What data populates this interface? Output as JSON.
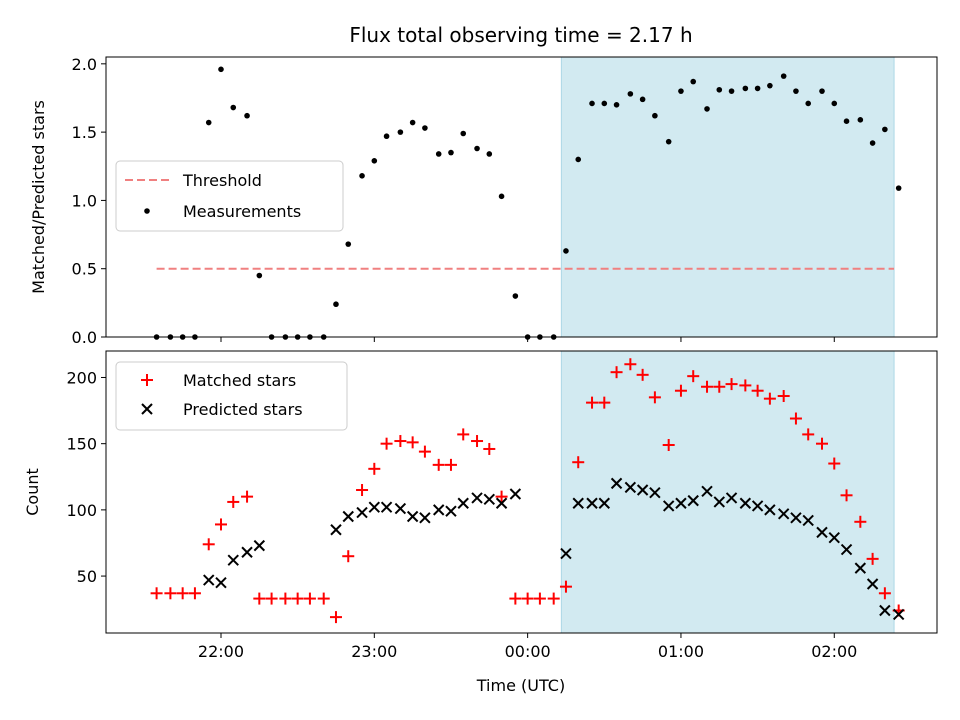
{
  "chart_data": {
    "title": "Flux total observing time = 2.17 h",
    "xlabel": "Time (UTC)",
    "x_ticks": [
      "22:00",
      "23:00",
      "00:00",
      "01:00",
      "02:00"
    ],
    "x_tick_hours": [
      22,
      23,
      24,
      25,
      26
    ],
    "xlim_hours": [
      21.25,
      26.67
    ],
    "shaded_span_hours": [
      24.22,
      26.39
    ],
    "shade_color": "#add8e6",
    "top": {
      "type": "scatter",
      "ylabel": "Matched/Predicted stars",
      "ylim": [
        0,
        2.05
      ],
      "yticks": [
        "0.0",
        "0.5",
        "1.0",
        "1.5",
        "2.0"
      ],
      "ytick_values": [
        0,
        0.5,
        1.0,
        1.5,
        2.0
      ],
      "threshold": 0.5,
      "threshold_range_hours": [
        21.58,
        26.39
      ],
      "threshold_color": "#f08080",
      "legend": {
        "threshold_label": "Threshold",
        "measurements_label": "Measurements",
        "loc": "center-left"
      },
      "points": [
        [
          21.58,
          0
        ],
        [
          21.67,
          0
        ],
        [
          21.75,
          0
        ],
        [
          21.83,
          0
        ],
        [
          21.92,
          1.57
        ],
        [
          22.0,
          1.96
        ],
        [
          22.08,
          1.68
        ],
        [
          22.17,
          1.62
        ],
        [
          22.25,
          0.45
        ],
        [
          22.33,
          0
        ],
        [
          22.42,
          0
        ],
        [
          22.5,
          0
        ],
        [
          22.58,
          0
        ],
        [
          22.67,
          0
        ],
        [
          22.75,
          0.24
        ],
        [
          22.83,
          0.68
        ],
        [
          22.92,
          1.18
        ],
        [
          23.0,
          1.29
        ],
        [
          23.08,
          1.47
        ],
        [
          23.17,
          1.5
        ],
        [
          23.25,
          1.57
        ],
        [
          23.33,
          1.53
        ],
        [
          23.42,
          1.34
        ],
        [
          23.5,
          1.35
        ],
        [
          23.58,
          1.49
        ],
        [
          23.67,
          1.38
        ],
        [
          23.75,
          1.34
        ],
        [
          23.83,
          1.03
        ],
        [
          23.92,
          0.3
        ],
        [
          24.0,
          0
        ],
        [
          24.08,
          0
        ],
        [
          24.17,
          0
        ],
        [
          24.25,
          0.63
        ],
        [
          24.33,
          1.3
        ],
        [
          24.42,
          1.71
        ],
        [
          24.5,
          1.71
        ],
        [
          24.58,
          1.7
        ],
        [
          24.67,
          1.78
        ],
        [
          24.75,
          1.74
        ],
        [
          24.83,
          1.62
        ],
        [
          24.92,
          1.43
        ],
        [
          25.0,
          1.8
        ],
        [
          25.08,
          1.87
        ],
        [
          25.17,
          1.67
        ],
        [
          25.25,
          1.81
        ],
        [
          25.33,
          1.8
        ],
        [
          25.42,
          1.82
        ],
        [
          25.5,
          1.82
        ],
        [
          25.58,
          1.84
        ],
        [
          25.67,
          1.91
        ],
        [
          25.75,
          1.8
        ],
        [
          25.83,
          1.71
        ],
        [
          25.92,
          1.8
        ],
        [
          26.0,
          1.71
        ],
        [
          26.08,
          1.58
        ],
        [
          26.17,
          1.59
        ],
        [
          26.25,
          1.42
        ],
        [
          26.33,
          1.52
        ],
        [
          26.42,
          1.09
        ]
      ]
    },
    "bottom": {
      "type": "scatter",
      "ylabel": "Count",
      "ylim": [
        7,
        220
      ],
      "yticks": [
        "50",
        "100",
        "150",
        "200"
      ],
      "ytick_values": [
        50,
        100,
        150,
        200
      ],
      "legend": {
        "matched_label": "Matched stars",
        "predicted_label": "Predicted stars",
        "loc": "top-left"
      },
      "matched_color": "#ff0000",
      "predicted_color": "#000000",
      "matched": [
        [
          21.58,
          37
        ],
        [
          21.67,
          37
        ],
        [
          21.75,
          37
        ],
        [
          21.83,
          37
        ],
        [
          21.92,
          74
        ],
        [
          22.0,
          89
        ],
        [
          22.08,
          106
        ],
        [
          22.17,
          110
        ],
        [
          22.25,
          33
        ],
        [
          22.33,
          33
        ],
        [
          22.42,
          33
        ],
        [
          22.5,
          33
        ],
        [
          22.58,
          33
        ],
        [
          22.67,
          33
        ],
        [
          22.75,
          19
        ],
        [
          22.83,
          65
        ],
        [
          22.92,
          115
        ],
        [
          23.0,
          131
        ],
        [
          23.08,
          150
        ],
        [
          23.17,
          152
        ],
        [
          23.25,
          151
        ],
        [
          23.33,
          144
        ],
        [
          23.42,
          134
        ],
        [
          23.5,
          134
        ],
        [
          23.58,
          157
        ],
        [
          23.67,
          152
        ],
        [
          23.75,
          146
        ],
        [
          23.83,
          110
        ],
        [
          23.92,
          33
        ],
        [
          24.0,
          33
        ],
        [
          24.08,
          33
        ],
        [
          24.17,
          33
        ],
        [
          24.25,
          42
        ],
        [
          24.33,
          136
        ],
        [
          24.42,
          181
        ],
        [
          24.5,
          181
        ],
        [
          24.58,
          204
        ],
        [
          24.67,
          210
        ],
        [
          24.75,
          202
        ],
        [
          24.83,
          185
        ],
        [
          24.92,
          149
        ],
        [
          25.0,
          190
        ],
        [
          25.08,
          201
        ],
        [
          25.17,
          193
        ],
        [
          25.25,
          193
        ],
        [
          25.33,
          195
        ],
        [
          25.42,
          194
        ],
        [
          25.5,
          190
        ],
        [
          25.58,
          184
        ],
        [
          25.67,
          186
        ],
        [
          25.75,
          169
        ],
        [
          25.83,
          157
        ],
        [
          25.92,
          150
        ],
        [
          26.0,
          135
        ],
        [
          26.08,
          111
        ],
        [
          26.17,
          91
        ],
        [
          26.25,
          63
        ],
        [
          26.33,
          37
        ],
        [
          26.42,
          24
        ]
      ],
      "predicted": [
        [
          21.92,
          47
        ],
        [
          22.0,
          45
        ],
        [
          22.08,
          62
        ],
        [
          22.17,
          68
        ],
        [
          22.25,
          73
        ],
        [
          22.75,
          85
        ],
        [
          22.83,
          95
        ],
        [
          22.92,
          98
        ],
        [
          23.0,
          102
        ],
        [
          23.08,
          102
        ],
        [
          23.17,
          101
        ],
        [
          23.25,
          95
        ],
        [
          23.33,
          94
        ],
        [
          23.42,
          100
        ],
        [
          23.5,
          99
        ],
        [
          23.58,
          105
        ],
        [
          23.67,
          109
        ],
        [
          23.75,
          108
        ],
        [
          23.83,
          105
        ],
        [
          23.92,
          112
        ],
        [
          24.25,
          67
        ],
        [
          24.33,
          105
        ],
        [
          24.42,
          105
        ],
        [
          24.5,
          105
        ],
        [
          24.58,
          120
        ],
        [
          24.67,
          117
        ],
        [
          24.75,
          115
        ],
        [
          24.83,
          113
        ],
        [
          24.92,
          103
        ],
        [
          25.0,
          105
        ],
        [
          25.08,
          107
        ],
        [
          25.17,
          114
        ],
        [
          25.25,
          106
        ],
        [
          25.33,
          109
        ],
        [
          25.42,
          105
        ],
        [
          25.5,
          103
        ],
        [
          25.58,
          100
        ],
        [
          25.67,
          97
        ],
        [
          25.75,
          94
        ],
        [
          25.83,
          92
        ],
        [
          25.92,
          83
        ],
        [
          26.0,
          79
        ],
        [
          26.08,
          70
        ],
        [
          26.17,
          56
        ],
        [
          26.25,
          44
        ],
        [
          26.33,
          24
        ],
        [
          26.42,
          21
        ]
      ]
    }
  }
}
